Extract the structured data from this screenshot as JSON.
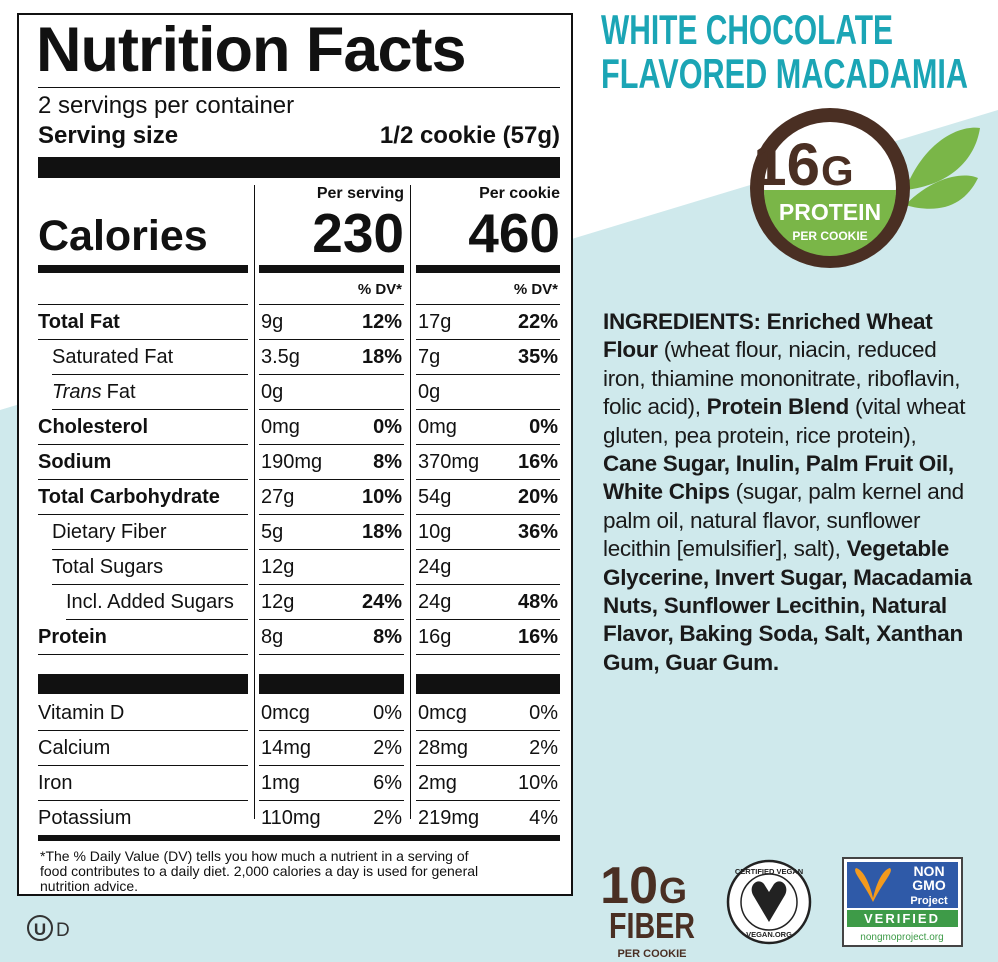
{
  "nutrition_label": {
    "title": "Nutrition Facts",
    "servings": "2 servings per container",
    "serving_size_label": "Serving size",
    "serving_size_value": "1/2 cookie (57g)",
    "calories_label": "Calories",
    "dv_header": "% DV*",
    "columns": [
      {
        "header": "Per serving",
        "calories": "230"
      },
      {
        "header": "Per cookie",
        "calories": "460"
      }
    ],
    "nutrients": [
      {
        "name": "Total Fat",
        "bold": true,
        "indent": 0,
        "values": [
          [
            "9g",
            "12%"
          ],
          [
            "17g",
            "22%"
          ]
        ]
      },
      {
        "name": "Saturated Fat",
        "bold": false,
        "indent": 1,
        "values": [
          [
            "3.5g",
            "18%"
          ],
          [
            "7g",
            "35%"
          ]
        ]
      },
      {
        "name_italic": "Trans",
        "name": "Fat",
        "bold": false,
        "indent": 1,
        "values": [
          [
            "0g"
          ],
          [
            "0g"
          ]
        ]
      },
      {
        "name": "Cholesterol",
        "bold": true,
        "indent": 0,
        "values": [
          [
            "0mg",
            "0%"
          ],
          [
            "0mg",
            "0%"
          ]
        ]
      },
      {
        "name": "Sodium",
        "bold": true,
        "indent": 0,
        "values": [
          [
            "190mg",
            "8%"
          ],
          [
            "370mg",
            "16%"
          ]
        ]
      },
      {
        "name": "Total Carbohydrate",
        "bold": true,
        "indent": 0,
        "values": [
          [
            "27g",
            "10%"
          ],
          [
            "54g",
            "20%"
          ]
        ]
      },
      {
        "name": "Dietary Fiber",
        "bold": false,
        "indent": 1,
        "values": [
          [
            "5g",
            "18%"
          ],
          [
            "10g",
            "36%"
          ]
        ]
      },
      {
        "name": "Total Sugars",
        "bold": false,
        "indent": 1,
        "values": [
          [
            "12g"
          ],
          [
            "24g"
          ]
        ]
      },
      {
        "name": "Incl. Added Sugars",
        "bold": false,
        "indent": 2,
        "values": [
          [
            "12g",
            "24%"
          ],
          [
            "24g",
            "48%"
          ]
        ]
      },
      {
        "name": "Protein",
        "bold": true,
        "indent": 0,
        "values": [
          [
            "8g",
            "8%"
          ],
          [
            "16g",
            "16%"
          ]
        ]
      }
    ],
    "vitamins": [
      {
        "name": "Vitamin D",
        "values": [
          [
            "0mcg",
            "0%"
          ],
          [
            "0mcg",
            "0%"
          ]
        ]
      },
      {
        "name": "Calcium",
        "values": [
          [
            "14mg",
            "2%"
          ],
          [
            "28mg",
            "2%"
          ]
        ]
      },
      {
        "name": "Iron",
        "values": [
          [
            "1mg",
            "6%"
          ],
          [
            "2mg",
            "10%"
          ]
        ]
      },
      {
        "name": "Potassium",
        "values": [
          [
            "110mg",
            "2%"
          ],
          [
            "219mg",
            "4%"
          ]
        ]
      }
    ],
    "footnote": [
      "*The % Daily Value (DV) tells you how much a nutrient in a serving of",
      "food contributes to a daily diet. 2,000 calories a day is used for general",
      "nutrition advice."
    ]
  },
  "kosher": {
    "symbol": "U",
    "suffix": "D"
  },
  "product": {
    "title_lines": [
      "WHITE CHOCOLATE",
      "FLAVORED MACADAMIA"
    ]
  },
  "protein_badge": {
    "amount": "16",
    "unit": "G",
    "label": "PROTEIN",
    "sub": "PER COOKIE"
  },
  "ingredients": {
    "segments": [
      {
        "text": "INGREDIENTS: Enriched Wheat Flour",
        "bold": true
      },
      {
        "text": "(wheat flour, niacin, reduced iron, thiamine mononitrate, riboflavin, folic acid),",
        "bold": false
      },
      {
        "text": "Protein Blend",
        "bold": true
      },
      {
        "text": "(vital wheat gluten, pea protein, rice protein),",
        "bold": false
      },
      {
        "text": "Cane Sugar, Inulin, Palm Fruit Oil, White Chips",
        "bold": true
      },
      {
        "text": "(sugar, palm kernel and palm oil, natural flavor, sunflower lecithin [emulsifier], salt),",
        "bold": false
      },
      {
        "text": "Vegetable Glycerine, Invert Sugar, Macadamia Nuts, Sunflower Lecithin, Natural Flavor, Baking Soda, Salt, Xanthan Gum, Guar Gum.",
        "bold": true
      }
    ]
  },
  "fiber_badge": {
    "amount": "10",
    "unit": "G",
    "label": "FIBER",
    "sub": "PER COOKIE"
  },
  "vegan_badge": {
    "top": "CERTIFIED VEGAN",
    "bottom": "VEGAN.ORG"
  },
  "non_gmo_badge": {
    "lines": [
      "NON",
      "GMO",
      "Project"
    ],
    "verified": "VERIFIED",
    "url": "nongmoproject.org"
  }
}
